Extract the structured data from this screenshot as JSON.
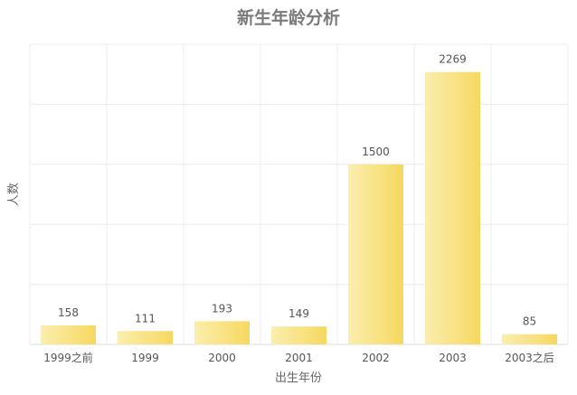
{
  "chart_data": {
    "type": "bar",
    "title": "新生年龄分析",
    "xlabel": "出生年份",
    "ylabel": "人数",
    "categories": [
      "1999之前",
      "1999",
      "2000",
      "2001",
      "2002",
      "2003",
      "2003之后"
    ],
    "values": [
      158,
      111,
      193,
      149,
      1500,
      2269,
      85
    ],
    "ylim": [
      0,
      2500
    ],
    "grid": true,
    "legend": "none",
    "colors": {
      "bar_start": "#fbeeae",
      "bar_end": "#f6d860",
      "title": "#7b7b7b",
      "grid": "#ececec"
    }
  }
}
